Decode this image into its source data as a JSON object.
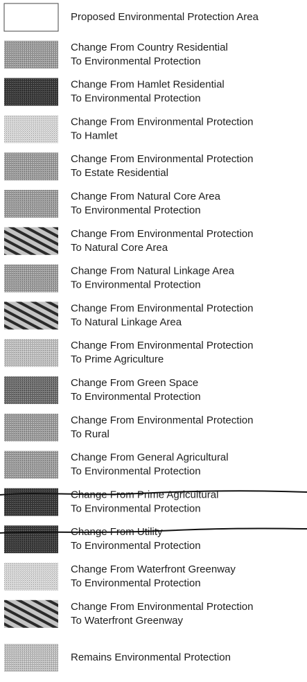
{
  "legend": {
    "items": [
      {
        "lines": [
          "Proposed Environmental Protection Area"
        ]
      },
      {
        "lines": [
          "Change From Country Residential",
          "To Environmental Protection"
        ]
      },
      {
        "lines": [
          "Change From Hamlet Residential",
          "To Environmental Protection"
        ]
      },
      {
        "lines": [
          "Change From Environmental Protection",
          "To Hamlet"
        ]
      },
      {
        "lines": [
          "Change From Environmental Protection",
          "To Estate Residential"
        ]
      },
      {
        "lines": [
          "Change From Natural Core Area",
          "To Environmental Protection"
        ]
      },
      {
        "lines": [
          "Change From Environmental Protection",
          "To Natural Core Area"
        ]
      },
      {
        "lines": [
          "Change From Natural Linkage Area",
          "To Environmental Protection"
        ]
      },
      {
        "lines": [
          "Change From Environmental Protection",
          "To Natural Linkage Area"
        ]
      },
      {
        "lines": [
          "Change From Environmental Protection",
          "To Prime Agriculture"
        ]
      },
      {
        "lines": [
          "Change From Green Space",
          "To Environmental Protection"
        ]
      },
      {
        "lines": [
          "Change From Environmental Protection",
          "To Rural"
        ]
      },
      {
        "lines": [
          "Change From General Agricultural",
          "To Environmental Protection"
        ]
      },
      {
        "lines": [
          "Change From Prime Agricultural",
          "To Environmental Protection"
        ]
      },
      {
        "lines": [
          "Change From Utility",
          "To Environmental Protection"
        ]
      },
      {
        "lines": [
          "Change From Waterfront Greenway",
          "To Environmental Protection"
        ]
      },
      {
        "lines": [
          "Change From Environmental Protection",
          "To Waterfront Greenway"
        ]
      },
      {
        "lines": [
          "Remains Environmental Protection"
        ]
      }
    ]
  }
}
